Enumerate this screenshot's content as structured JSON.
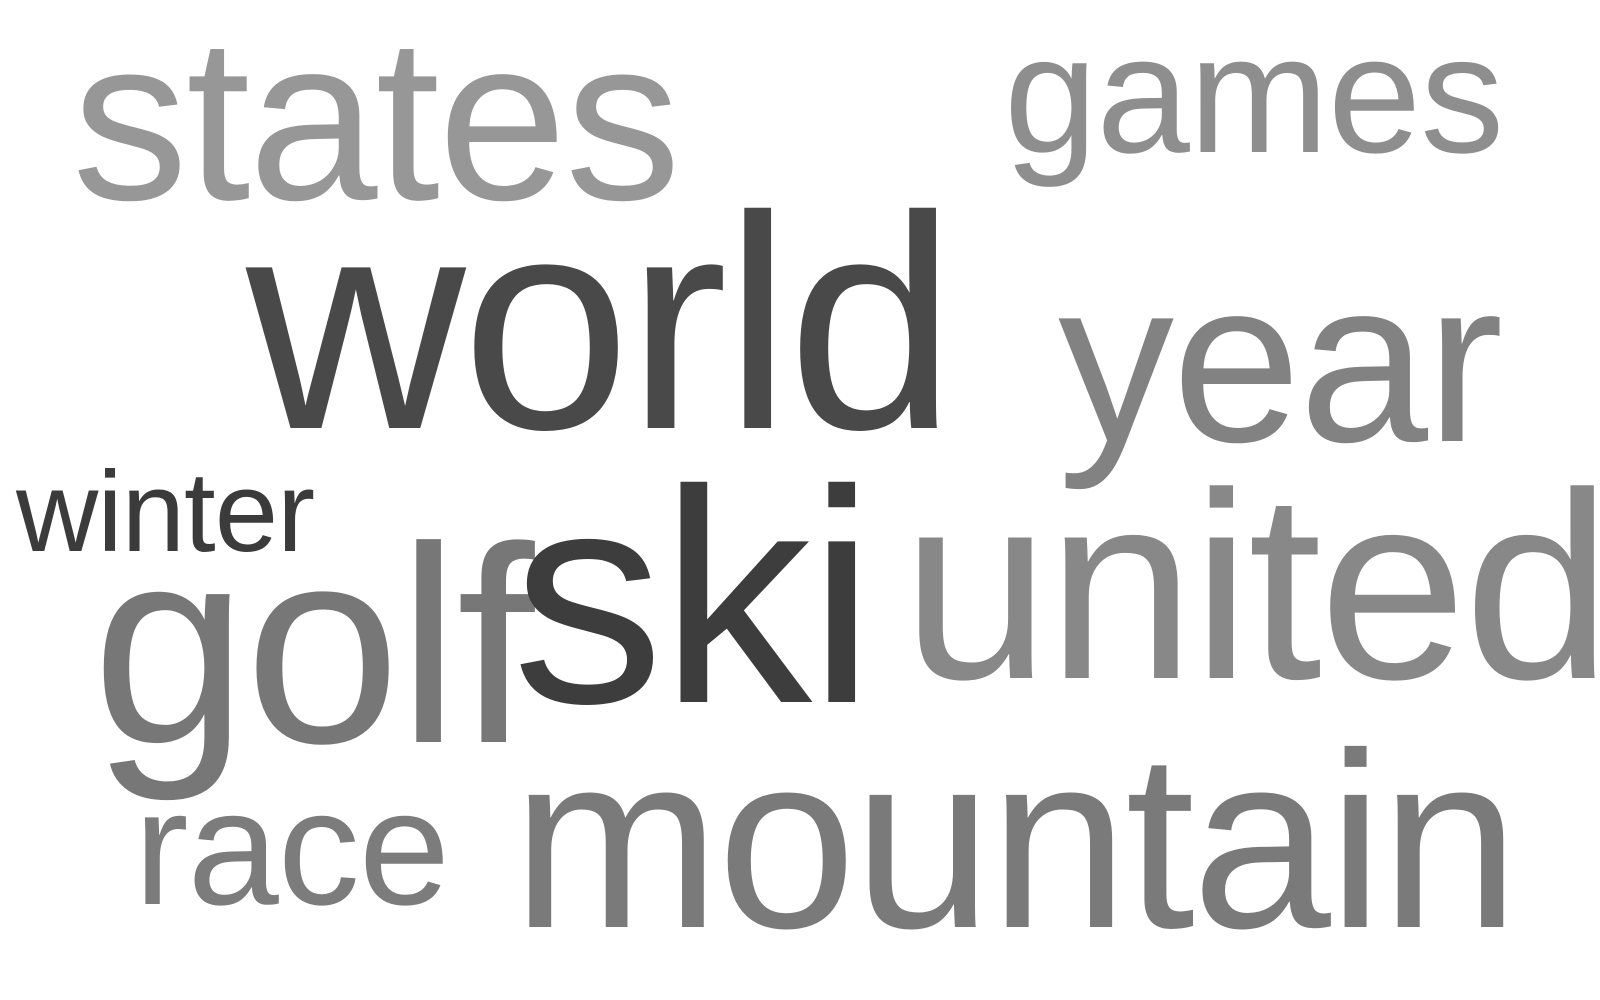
{
  "word_cloud": {
    "words": [
      {
        "text": "states",
        "color": "#979797"
      },
      {
        "text": "games",
        "color": "#8e8e8e"
      },
      {
        "text": "world",
        "color": "#494949"
      },
      {
        "text": "year",
        "color": "#828282"
      },
      {
        "text": "winter",
        "color": "#3b3b3b"
      },
      {
        "text": "golf",
        "color": "#777777"
      },
      {
        "text": "ski",
        "color": "#3d3d3d"
      },
      {
        "text": "united",
        "color": "#888888"
      },
      {
        "text": "race",
        "color": "#7c7c7c"
      },
      {
        "text": "mountain",
        "color": "#7a7a7a"
      }
    ]
  }
}
